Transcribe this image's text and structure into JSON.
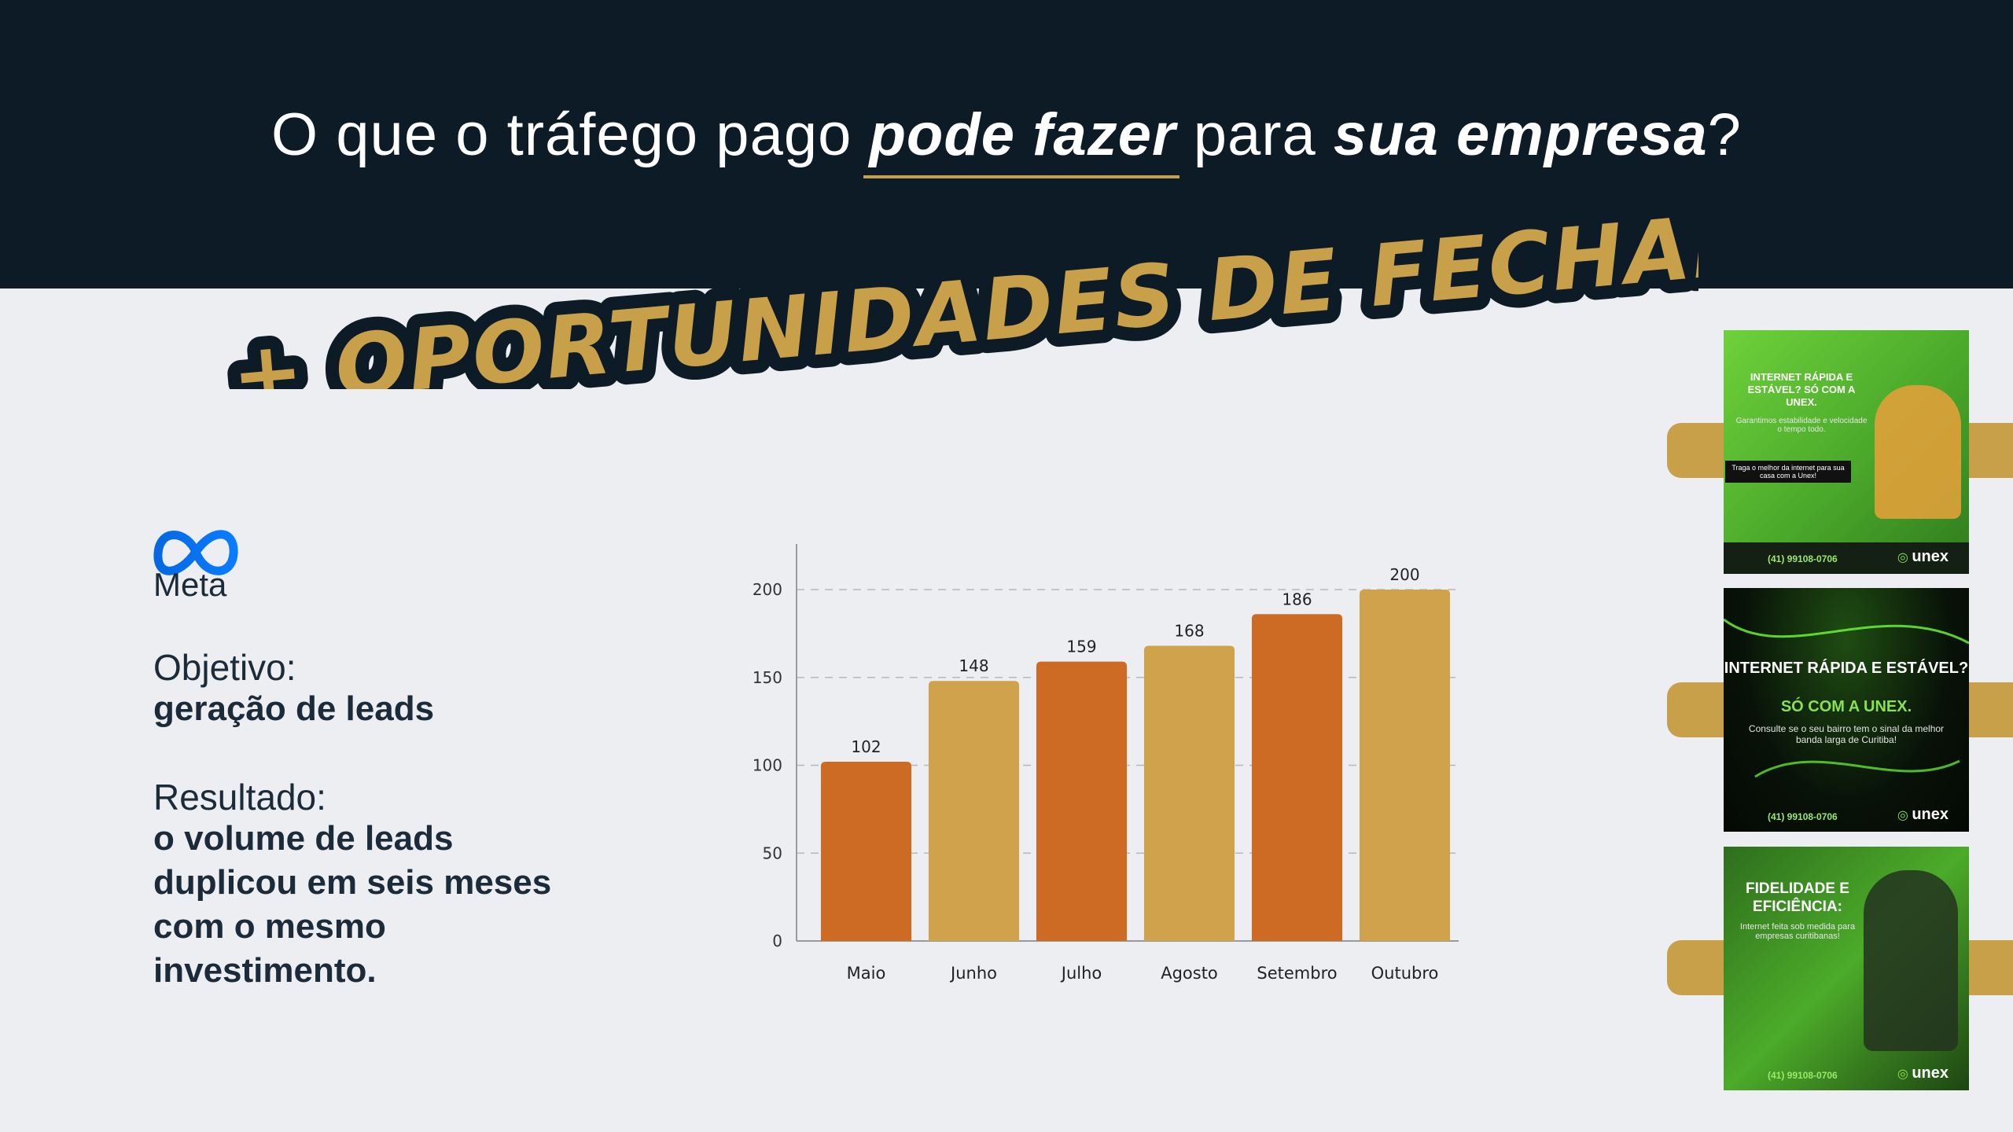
{
  "headline": {
    "part1": "O que o tráfego pago ",
    "em1": "pode fazer",
    "part2": " para ",
    "em2": "sua empresa",
    "part3": "?"
  },
  "banner": "+ OPORTUNIDADES DE FECHAR NEGÓCIO",
  "brand": {
    "name": "Meta",
    "color": "#1877f2"
  },
  "objective": {
    "label": "Objetivo:",
    "value": "geração de leads"
  },
  "result": {
    "label": "Resultado:",
    "value": "o volume de leads duplicou em seis meses com o mesmo investimento."
  },
  "chart_data": {
    "type": "bar",
    "categories": [
      "Maio",
      "Junho",
      "Julho",
      "Agosto",
      "Setembro",
      "Outubro"
    ],
    "values": [
      102,
      148,
      159,
      168,
      186,
      200
    ],
    "colors": [
      "#cd6a23",
      "#cfa24b",
      "#cd6a23",
      "#cfa24b",
      "#cd6a23",
      "#cfa24b"
    ],
    "yticks": [
      0,
      50,
      100,
      150,
      200
    ],
    "ylim": [
      0,
      200
    ],
    "grid": true,
    "title": "",
    "xlabel": "",
    "ylabel": ""
  },
  "thumbnails": [
    {
      "title": "INTERNET RÁPIDA E ESTÁVEL? SÓ COM A UNEX.",
      "subtitle": "Garantimos estabilidade e velocidade o tempo todo.",
      "tagline": "Traga o melhor da internet para sua casa com a Unex!",
      "phone": "(41) 99108-0706",
      "brand": "unex"
    },
    {
      "title": "INTERNET RÁPIDA E ESTÁVEL?",
      "highlight": "SÓ COM A UNEX.",
      "subtitle": "Consulte se o seu bairro tem o sinal da melhor banda larga de Curitiba!",
      "phone": "(41) 99108-0706",
      "brand": "unex"
    },
    {
      "title": "FIDELIDADE E EFICIÊNCIA:",
      "subtitle": "Internet feita sob medida para empresas curitibanas!",
      "phone": "(41) 99108-0706",
      "brand": "unex"
    }
  ]
}
